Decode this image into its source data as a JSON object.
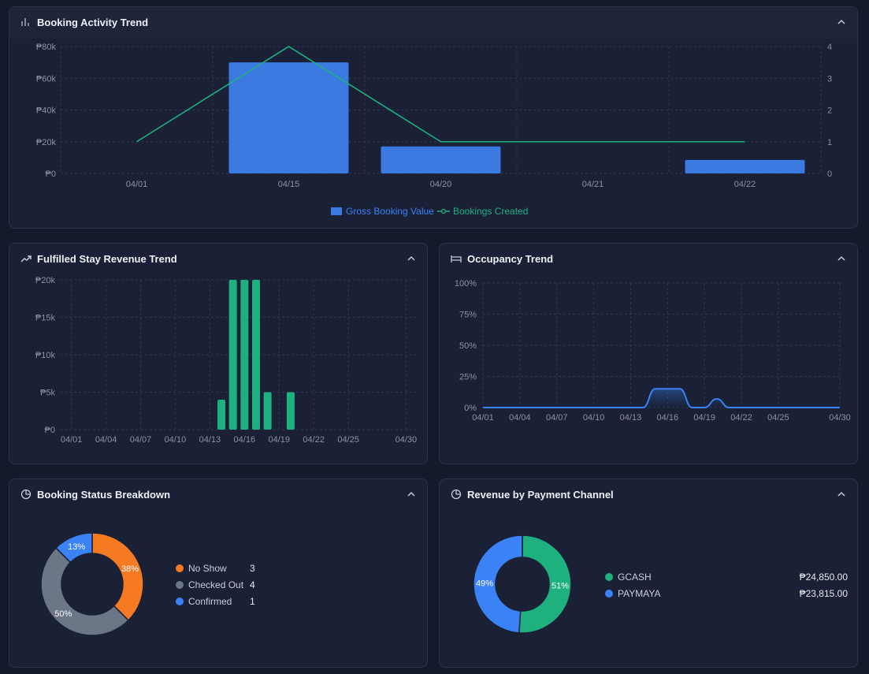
{
  "colors": {
    "blue": "#3b7ae0",
    "green": "#1fb07f",
    "orange": "#f67a22",
    "gray": "#6b7686",
    "axis": "#8a93a6",
    "grid": "#2f3850"
  },
  "booking_activity": {
    "title": "Booking Activity Trend",
    "icon": "bar-chart-icon",
    "legend_value": "Gross Booking Value",
    "legend_count": "Bookings Created"
  },
  "fulfilled_revenue": {
    "title": "Fulfilled Stay Revenue Trend",
    "icon": "trending-up-icon"
  },
  "occupancy": {
    "title": "Occupancy Trend",
    "icon": "bed-icon"
  },
  "booking_status": {
    "title": "Booking Status Breakdown",
    "icon": "pie-chart-icon",
    "items": [
      {
        "label": "No Show",
        "count": "3",
        "percent": "38%",
        "color": "#f67a22"
      },
      {
        "label": "Checked Out",
        "count": "4",
        "percent": "50%",
        "color": "#6b7686"
      },
      {
        "label": "Confirmed",
        "count": "1",
        "percent": "13%",
        "color": "#3b82f6"
      }
    ]
  },
  "payment_channel": {
    "title": "Revenue by Payment Channel",
    "icon": "pie-chart-icon",
    "items": [
      {
        "label": "GCASH",
        "amount": "₱24,850.00",
        "percent": "51%",
        "color": "#1fb07f"
      },
      {
        "label": "PAYMAYA",
        "amount": "₱23,815.00",
        "percent": "49%",
        "color": "#3b82f6"
      }
    ]
  },
  "chart_data": [
    {
      "type": "bar",
      "title": "Booking Activity Trend",
      "categories": [
        "04/01",
        "04/15",
        "04/20",
        "04/21",
        "04/22"
      ],
      "series": [
        {
          "name": "Gross Booking Value",
          "type": "bar",
          "values": [
            0,
            70000,
            17000,
            0,
            8500
          ]
        },
        {
          "name": "Bookings Created",
          "type": "line",
          "values": [
            1,
            4,
            1,
            1,
            1
          ]
        }
      ],
      "y_ticks": [
        "₱0",
        "₱20k",
        "₱40k",
        "₱60k",
        "₱80k"
      ],
      "ylim": [
        0,
        80000
      ],
      "y2_ticks": [
        "0",
        "1",
        "2",
        "3",
        "4"
      ],
      "y2lim": [
        0,
        4
      ],
      "grid": true,
      "legend": "bottom"
    },
    {
      "type": "bar",
      "title": "Fulfilled Stay Revenue Trend",
      "x_ticks": [
        "04/01",
        "04/04",
        "04/07",
        "04/10",
        "04/13",
        "04/16",
        "04/19",
        "04/22",
        "04/25",
        "04/30"
      ],
      "series": [
        {
          "name": "",
          "points": [
            {
              "x": "04/14",
              "y": 4000
            },
            {
              "x": "04/15",
              "y": 20000
            },
            {
              "x": "04/16",
              "y": 20000
            },
            {
              "x": "04/17",
              "y": 20000
            },
            {
              "x": "04/18",
              "y": 5000
            },
            {
              "x": "04/20",
              "y": 5000
            }
          ]
        }
      ],
      "y_ticks": [
        "₱0",
        "₱5k",
        "₱10k",
        "₱15k",
        "₱20k"
      ],
      "ylim": [
        0,
        20000
      ],
      "grid": true
    },
    {
      "type": "area",
      "title": "Occupancy Trend",
      "x_ticks": [
        "04/01",
        "04/04",
        "04/07",
        "04/10",
        "04/13",
        "04/16",
        "04/19",
        "04/22",
        "04/25",
        "04/30"
      ],
      "series": [
        {
          "name": "",
          "points": [
            {
              "x": "04/01",
              "y": 0
            },
            {
              "x": "04/13",
              "y": 0
            },
            {
              "x": "04/14",
              "y": 0
            },
            {
              "x": "04/15",
              "y": 15
            },
            {
              "x": "04/16",
              "y": 15
            },
            {
              "x": "04/17",
              "y": 15
            },
            {
              "x": "04/18",
              "y": 0
            },
            {
              "x": "04/19",
              "y": 0
            },
            {
              "x": "04/20",
              "y": 7
            },
            {
              "x": "04/21",
              "y": 0
            },
            {
              "x": "04/22",
              "y": 0
            },
            {
              "x": "04/30",
              "y": 0
            }
          ]
        }
      ],
      "y_ticks": [
        "0%",
        "25%",
        "50%",
        "75%",
        "100%"
      ],
      "ylim": [
        0,
        100
      ],
      "grid": true
    },
    {
      "type": "pie",
      "title": "Booking Status Breakdown",
      "series": [
        {
          "name": "",
          "labels": [
            "No Show",
            "Checked Out",
            "Confirmed"
          ],
          "values": [
            3,
            4,
            1
          ]
        }
      ]
    },
    {
      "type": "pie",
      "title": "Revenue by Payment Channel",
      "series": [
        {
          "name": "",
          "labels": [
            "GCASH",
            "PAYMAYA"
          ],
          "values": [
            24850,
            23815
          ]
        }
      ]
    }
  ]
}
